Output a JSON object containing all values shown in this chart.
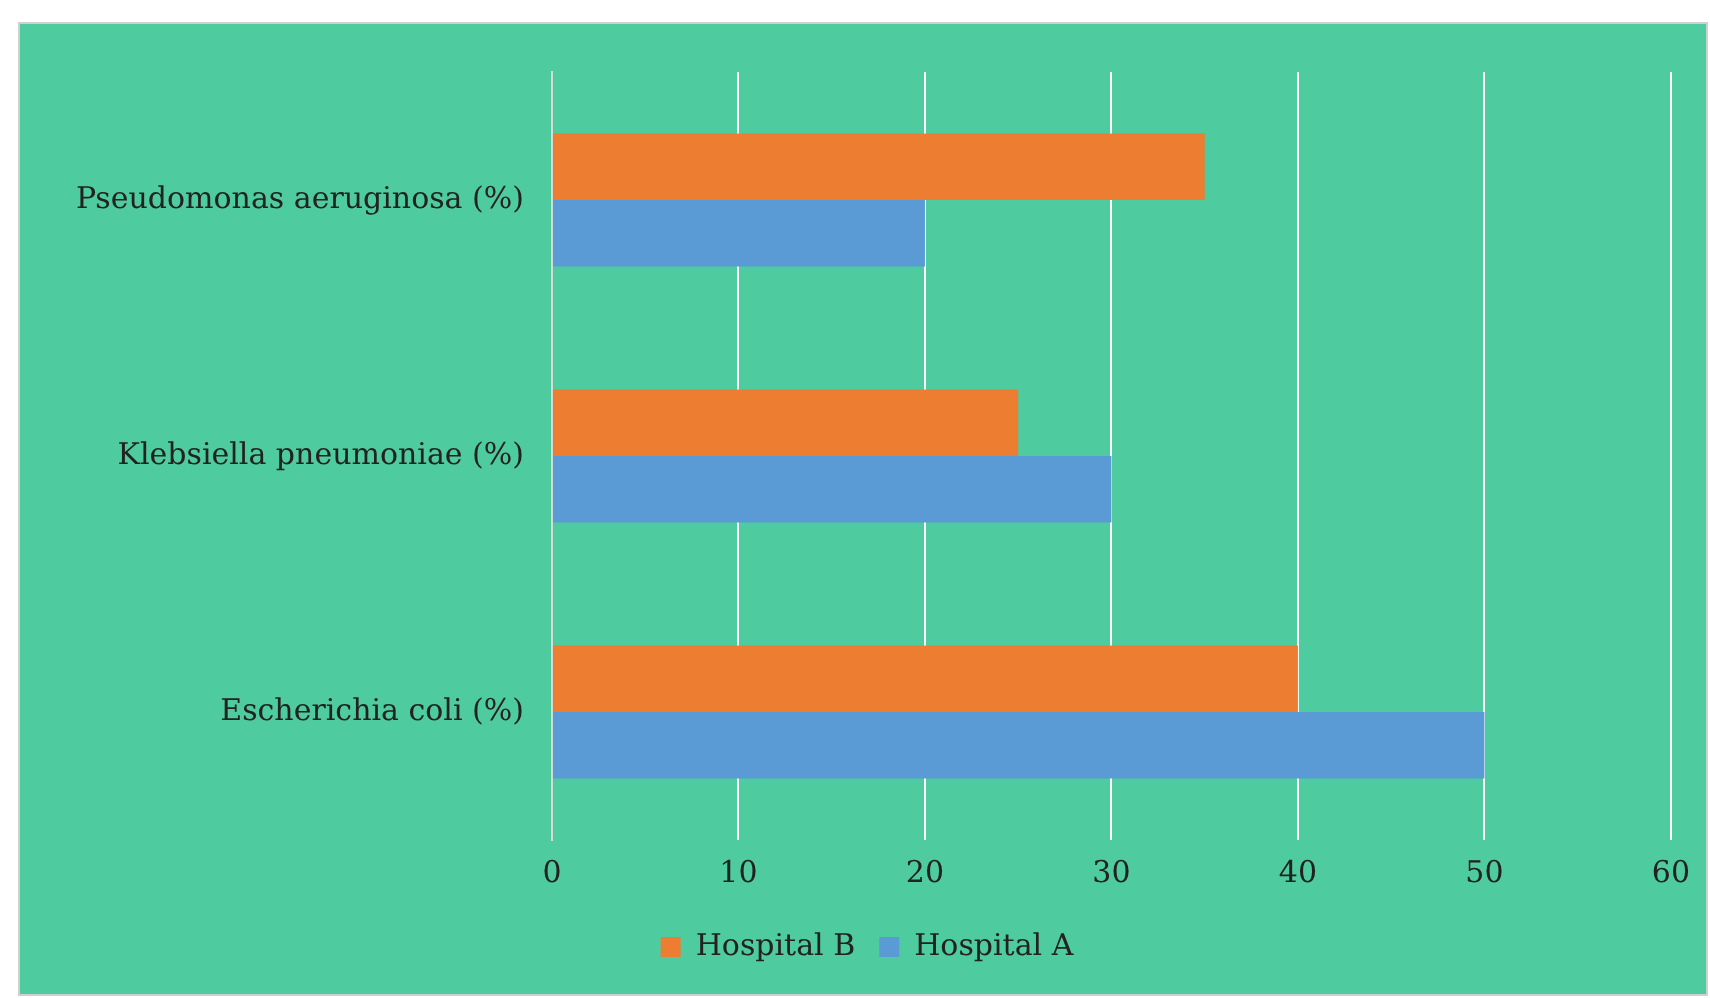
{
  "chart_data": {
    "type": "bar",
    "orientation": "horizontal",
    "categories": [
      "Pseudomonas aeruginosa (%)",
      "Klebsiella pneumoniae (%)",
      "Escherichia coli (%)"
    ],
    "series": [
      {
        "name": "Hospital B",
        "color": "#ed7d31",
        "values": [
          35,
          25,
          40
        ]
      },
      {
        "name": "Hospital A",
        "color": "#5b9bd5",
        "values": [
          20,
          30,
          50
        ]
      }
    ],
    "xlim": [
      0,
      60
    ],
    "xticks": [
      0,
      10,
      20,
      30,
      40,
      50,
      60
    ],
    "grid": "x",
    "legend": "bottom"
  }
}
